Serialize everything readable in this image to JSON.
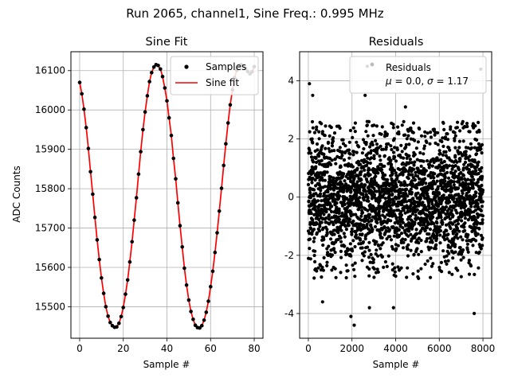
{
  "suptitle": "Run 2065, channel1, Sine Freq.: 0.995 MHz",
  "chart_data": [
    {
      "type": "line",
      "title": "Sine Fit",
      "xlabel": "Sample #",
      "ylabel": "ADC Counts",
      "xlim": [
        -4,
        84
      ],
      "ylim": [
        15420,
        16148
      ],
      "xticks": [
        0,
        20,
        40,
        60,
        80
      ],
      "yticks": [
        15500,
        15600,
        15700,
        15800,
        15900,
        16000,
        16100
      ],
      "grid": true,
      "legend": {
        "placement": "top-right",
        "entries": [
          "Samples",
          "Sine fit"
        ]
      },
      "series": [
        {
          "name": "Samples",
          "kind": "scatter",
          "color": "#000000",
          "x": [
            0,
            1,
            2,
            3,
            4,
            5,
            6,
            7,
            8,
            9,
            10,
            11,
            12,
            13,
            14,
            15,
            16,
            17,
            18,
            19,
            20,
            21,
            22,
            23,
            24,
            25,
            26,
            27,
            28,
            29,
            30,
            31,
            32,
            33,
            34,
            35,
            36,
            37,
            38,
            39,
            40,
            41,
            42,
            43,
            44,
            45,
            46,
            47,
            48,
            49,
            50,
            51,
            52,
            53,
            54,
            55,
            56,
            57,
            58,
            59,
            60,
            61,
            62,
            63,
            64,
            65,
            66,
            67,
            68,
            69,
            70,
            71,
            72,
            73,
            74,
            75,
            76,
            77,
            78,
            79,
            80
          ],
          "y": [
            16070,
            16041,
            16002,
            15955,
            15902,
            15843,
            15786,
            15727,
            15670,
            15620,
            15573,
            15534,
            15500,
            15476,
            15460,
            15452,
            15448,
            15449,
            15458,
            15475,
            15498,
            15532,
            15568,
            15614,
            15665,
            15720,
            15777,
            15837,
            15894,
            15950,
            15995,
            16036,
            16072,
            16095,
            16109,
            16115,
            16113,
            16104,
            16085,
            16056,
            16023,
            15980,
            15935,
            15877,
            15825,
            15764,
            15706,
            15652,
            15598,
            15555,
            15517,
            15488,
            15468,
            15453,
            15447,
            15446,
            15452,
            15466,
            15486,
            15514,
            15551,
            15590,
            15638,
            15688,
            15743,
            15801,
            15859,
            15914,
            15967,
            16013,
            16051,
            16082,
            16101,
            16112,
            16115,
            16112,
            16106,
            16098,
            16092,
            16097,
            16110
          ]
        },
        {
          "name": "Sine fit",
          "kind": "line",
          "color": "#ff0000",
          "x": [
            0,
            1,
            2,
            3,
            4,
            5,
            6,
            7,
            8,
            9,
            10,
            11,
            12,
            13,
            14,
            15,
            16,
            17,
            18,
            19,
            20,
            21,
            22,
            23,
            24,
            25,
            26,
            27,
            28,
            29,
            30,
            31,
            32,
            33,
            34,
            35,
            36,
            37,
            38,
            39,
            40,
            41,
            42,
            43,
            44,
            45,
            46,
            47,
            48,
            49,
            50,
            51,
            52,
            53,
            54,
            55,
            56,
            57,
            58,
            59,
            60,
            61,
            62,
            63,
            64,
            65,
            66,
            67,
            68,
            69,
            70,
            71,
            72,
            73,
            74,
            75,
            76,
            77,
            78,
            79,
            80
          ],
          "y": [
            16070,
            16041,
            16002,
            15955,
            15902,
            15843,
            15786,
            15727,
            15670,
            15620,
            15573,
            15534,
            15500,
            15476,
            15460,
            15452,
            15448,
            15449,
            15458,
            15475,
            15498,
            15532,
            15568,
            15614,
            15665,
            15720,
            15777,
            15837,
            15894,
            15950,
            15995,
            16036,
            16072,
            16095,
            16109,
            16115,
            16113,
            16104,
            16085,
            16056,
            16023,
            15980,
            15935,
            15877,
            15825,
            15764,
            15706,
            15652,
            15598,
            15555,
            15517,
            15488,
            15468,
            15453,
            15447,
            15446,
            15452,
            15466,
            15486,
            15514,
            15551,
            15590,
            15638,
            15688,
            15743,
            15801,
            15859,
            15914,
            15967,
            16013,
            16051,
            16082,
            16101,
            16112,
            16115,
            16112,
            16106,
            16098,
            16092,
            16097,
            16110
          ]
        }
      ]
    },
    {
      "type": "scatter",
      "title": "Residuals",
      "xlabel": "Sample #",
      "ylabel": "",
      "xlim": [
        -400,
        8400
      ],
      "ylim": [
        -4.85,
        5.0
      ],
      "xticks": [
        0,
        2000,
        4000,
        6000,
        8000
      ],
      "yticks": [
        -4,
        -2,
        0,
        2,
        4
      ],
      "grid": true,
      "legend": {
        "placement": "top-right",
        "entries": [
          "Residuals",
          "μ = 0.0, σ = 1.17"
        ]
      },
      "mean": 0.0,
      "sigma": 1.17,
      "n_points": 8000,
      "series": [
        {
          "name": "Residuals",
          "color": "#000000",
          "note": "≈8000 samples, approximately normal with mean 0.0 and sigma 1.17; points beyond ±2.6 are sparse",
          "outliers": [
            [
              50,
              3.9
            ],
            [
              200,
              3.5
            ],
            [
              2700,
              4.5
            ],
            [
              7900,
              4.4
            ],
            [
              1950,
              -4.1
            ],
            [
              2100,
              -4.4
            ],
            [
              7600,
              -4.0
            ],
            [
              2800,
              -3.8
            ],
            [
              3900,
              -3.8
            ],
            [
              650,
              -3.6
            ],
            [
              2600,
              3.5
            ],
            [
              4450,
              3.1
            ]
          ]
        }
      ]
    }
  ]
}
